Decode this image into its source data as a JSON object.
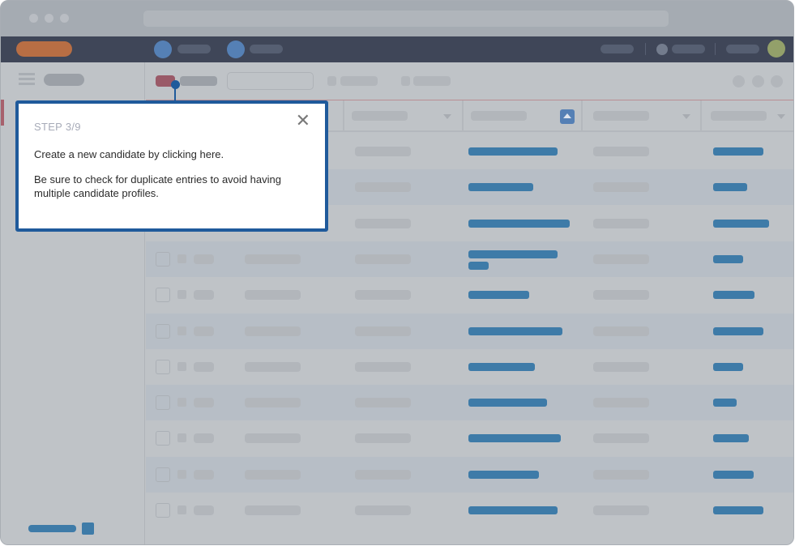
{
  "tooltip": {
    "step": "STEP 3/9",
    "line1": "Create a new candidate by clicking here.",
    "line2": "Be sure to check for duplicate entries to avoid having multiple candidate profiles.",
    "close_icon": "close-icon"
  },
  "colors": {
    "navbar": "#3f4658",
    "brand": "#b86e44",
    "accent_blue": "#3e7ba8",
    "tooltip_border": "#1f5a9b",
    "create_button": "#9a5a68",
    "avatar": "#93a06a"
  }
}
